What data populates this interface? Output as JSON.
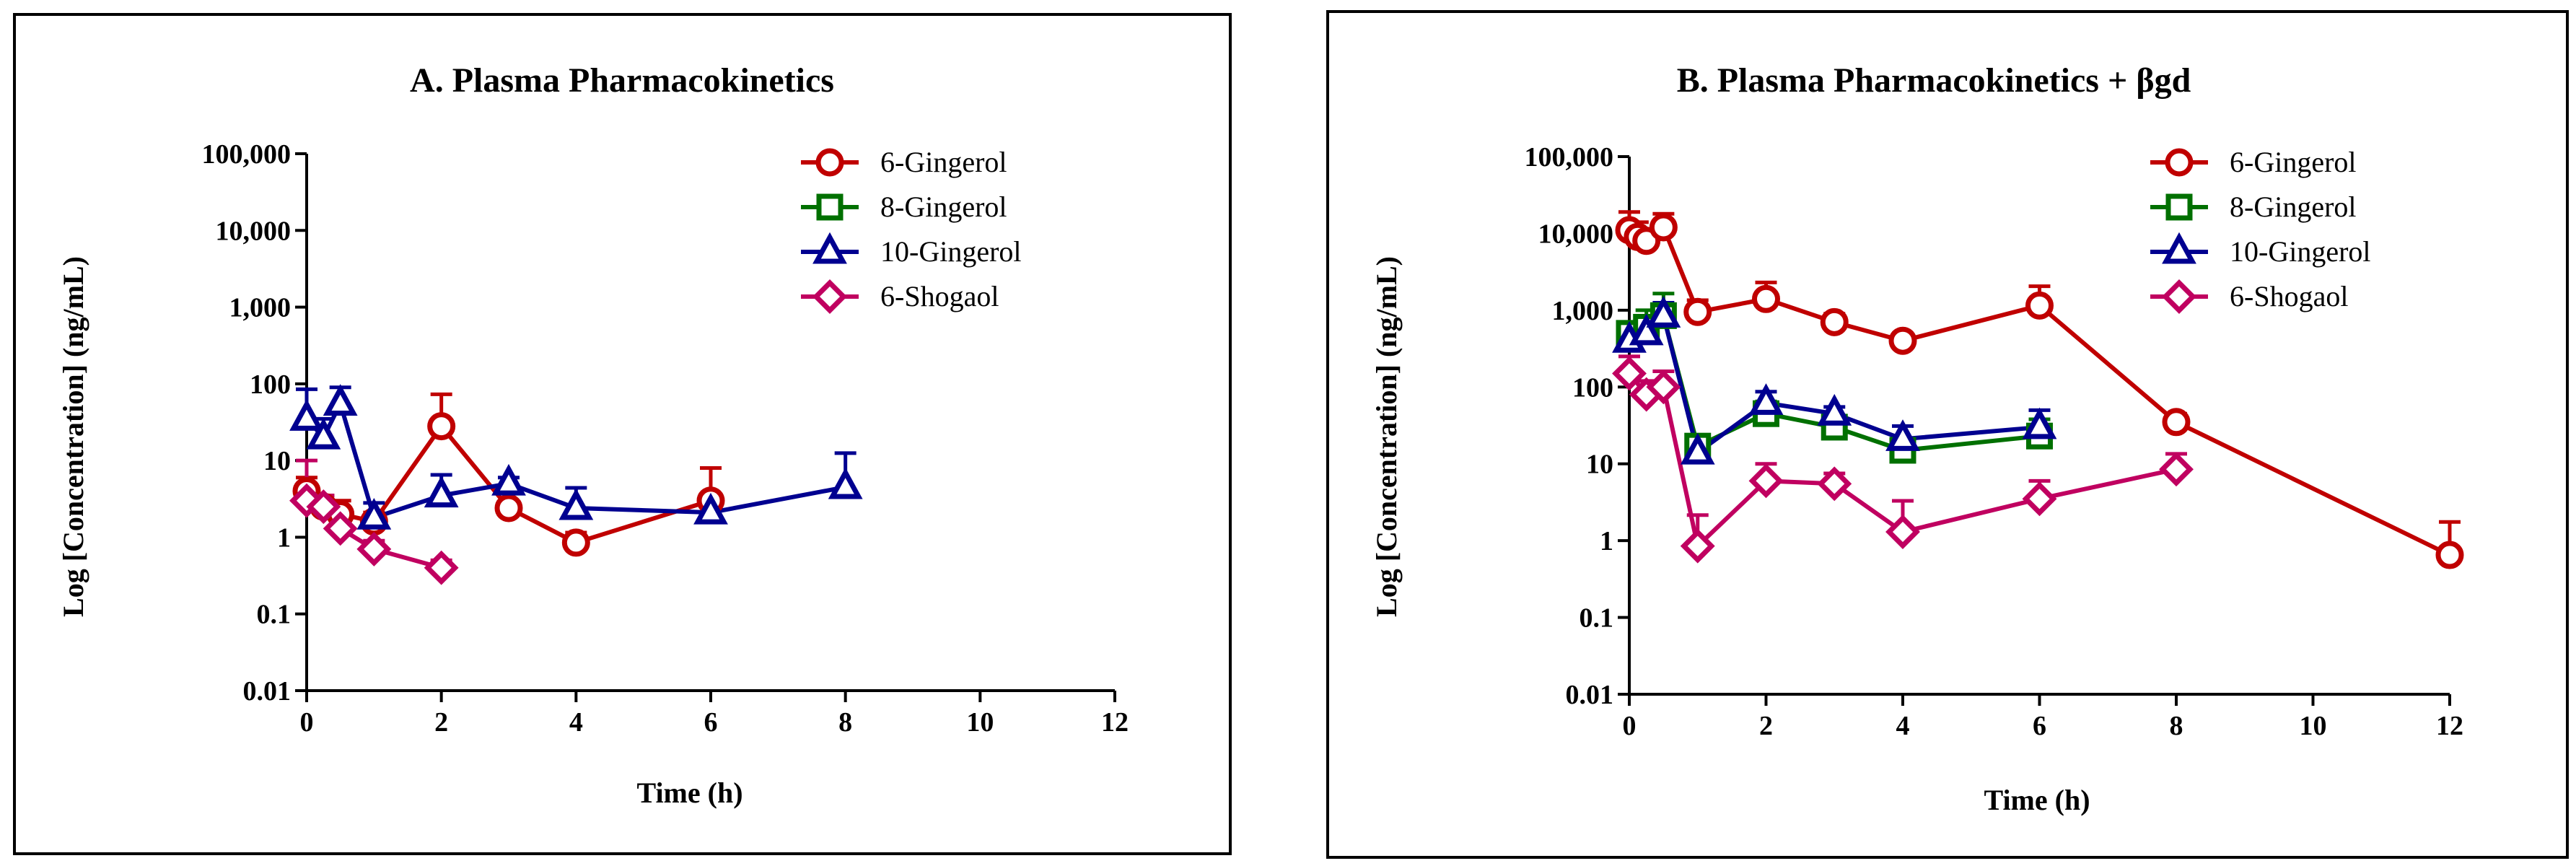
{
  "colors": {
    "red": "#C00000",
    "green": "#007000",
    "blue": "#000090",
    "pink": "#C00060",
    "axis": "#000000",
    "frame": "#000000"
  },
  "chart_data": [
    {
      "type": "line",
      "title": "A. Plasma Pharmacokinetics",
      "xlabel": "Time (h)",
      "ylabel": "Log [Concentration] (ng/mL)",
      "yscale": "log",
      "xlim": [
        0,
        12
      ],
      "ylim": [
        0.01,
        100000
      ],
      "xticks": [
        0,
        2,
        4,
        6,
        8,
        10,
        12
      ],
      "xtick_labels": [
        "0",
        "2",
        "4",
        "6",
        "8",
        "10",
        "12"
      ],
      "yticks": [
        0.01,
        0.1,
        1,
        10,
        100,
        1000,
        10000,
        100000
      ],
      "ytick_labels": [
        "0.01",
        "0.1",
        "1",
        "10",
        "100",
        "1,000",
        "10,000",
        "100,000"
      ],
      "legend_position": "top-right",
      "series": [
        {
          "name": "6-Gingerol",
          "color": "#C00000",
          "marker": "circle",
          "x": [
            0,
            0.25,
            0.5,
            1,
            2,
            3,
            4,
            6
          ],
          "y": [
            4,
            2.5,
            2,
            1.6,
            28,
            2.4,
            0.85,
            3
          ],
          "err": [
            2,
            1,
            1,
            0.5,
            45,
            0.5,
            0.3,
            5
          ]
        },
        {
          "name": "8-Gingerol",
          "color": "#007000",
          "marker": "square",
          "x": [],
          "y": [],
          "err": []
        },
        {
          "name": "10-Gingerol",
          "color": "#000090",
          "marker": "triangle",
          "x": [
            0,
            0.25,
            0.5,
            1,
            2,
            3,
            4,
            6,
            8
          ],
          "y": [
            35,
            20,
            55,
            1.8,
            3.5,
            5,
            2.4,
            2.1,
            4.5
          ],
          "err": [
            50,
            15,
            35,
            1,
            3,
            1,
            2,
            1,
            8
          ]
        },
        {
          "name": "6-Shogaol",
          "color": "#C00060",
          "marker": "diamond",
          "x": [
            0,
            0.25,
            0.5,
            1,
            2
          ],
          "y": [
            3,
            2.5,
            1.3,
            0.7,
            0.4
          ],
          "err": [
            7,
            1,
            0.5,
            0.2,
            0.1
          ]
        }
      ]
    },
    {
      "type": "line",
      "title": "B. Plasma Pharmacokinetics + βgd",
      "xlabel": "Time (h)",
      "ylabel": "Log [Concentration] (ng/mL)",
      "yscale": "log",
      "xlim": [
        0,
        12
      ],
      "ylim": [
        0.01,
        100000
      ],
      "xticks": [
        0,
        2,
        4,
        6,
        8,
        10,
        12
      ],
      "xtick_labels": [
        "0",
        "2",
        "4",
        "6",
        "8",
        "10",
        "12"
      ],
      "yticks": [
        0.01,
        0.1,
        1,
        10,
        100,
        1000,
        10000,
        100000
      ],
      "ytick_labels": [
        "0.01",
        "0.1",
        "1",
        "10",
        "100",
        "1,000",
        "10,000",
        "100,000"
      ],
      "legend_position": "top-right",
      "series": [
        {
          "name": "6-Gingerol",
          "color": "#C00000",
          "marker": "circle",
          "x": [
            0,
            0.125,
            0.25,
            0.5,
            1,
            2,
            3,
            4,
            6,
            8,
            12
          ],
          "y": [
            11000,
            9000,
            8000,
            12000,
            950,
            1400,
            700,
            400,
            1150,
            35,
            0.65
          ],
          "err": [
            8000,
            5000,
            2000,
            6000,
            400,
            900,
            200,
            100,
            900,
            10,
            1.1
          ]
        },
        {
          "name": "8-Gingerol",
          "color": "#007000",
          "marker": "square",
          "x": [
            0,
            0.25,
            0.5,
            1,
            2,
            3,
            4,
            6
          ],
          "y": [
            500,
            600,
            850,
            17,
            45,
            30,
            15,
            23
          ],
          "err": [
            100,
            400,
            800,
            5,
            20,
            10,
            5,
            15
          ]
        },
        {
          "name": "10-Gingerol",
          "color": "#000090",
          "marker": "triangle",
          "x": [
            0,
            0.25,
            0.5,
            1,
            2,
            3,
            4,
            6
          ],
          "y": [
            400,
            500,
            850,
            14,
            62,
            45,
            21,
            30
          ],
          "err": [
            200,
            300,
            400,
            4,
            25,
            10,
            10,
            20
          ]
        },
        {
          "name": "6-Shogaol",
          "color": "#C00060",
          "marker": "diamond",
          "x": [
            0,
            0.25,
            0.5,
            1,
            2,
            3,
            4,
            6,
            8
          ],
          "y": [
            150,
            80,
            100,
            0.85,
            6,
            5.5,
            1.3,
            3.5,
            8.5
          ],
          "err": [
            100,
            40,
            60,
            1.3,
            4,
            2,
            2,
            2.5,
            5
          ]
        }
      ]
    }
  ]
}
